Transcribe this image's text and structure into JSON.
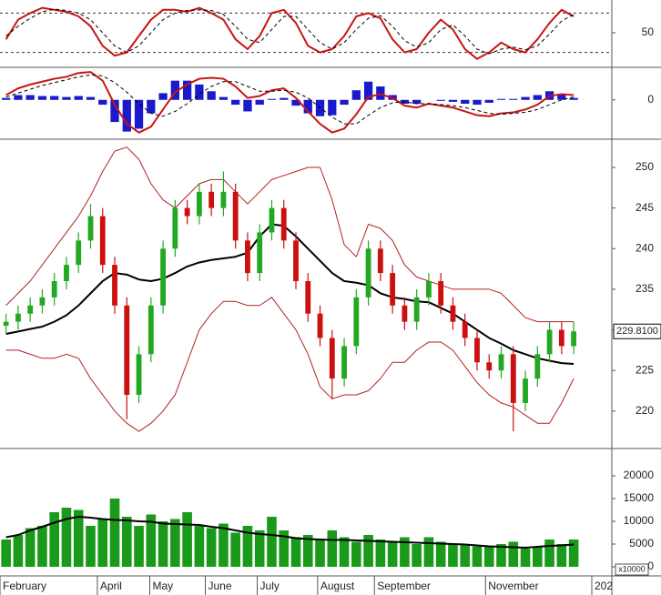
{
  "chart_data": [
    {
      "type": "line",
      "x": [
        0,
        1,
        2,
        3,
        4,
        5,
        6,
        7,
        8,
        9,
        10,
        11,
        12,
        13,
        14,
        15,
        16,
        17,
        18,
        19,
        20,
        21,
        22,
        23,
        24,
        25,
        26,
        27,
        28,
        29,
        30,
        31,
        32,
        33,
        34,
        35,
        36,
        37,
        38,
        39,
        40,
        41,
        42,
        43,
        44,
        45,
        46,
        47
      ],
      "xlim": [
        -0.5,
        48.5
      ],
      "ylim": [
        0,
        100
      ],
      "yticks": [
        50
      ],
      "hlines": [
        20,
        80
      ],
      "series": [
        {
          "color": "#c81414",
          "width": 2,
          "values": [
            40,
            70,
            80,
            88,
            85,
            82,
            75,
            60,
            30,
            15,
            20,
            45,
            70,
            85,
            85,
            82,
            88,
            80,
            70,
            40,
            25,
            45,
            80,
            85,
            65,
            30,
            20,
            25,
            45,
            75,
            80,
            72,
            40,
            20,
            25,
            50,
            70,
            55,
            25,
            10,
            20,
            35,
            25,
            20,
            40,
            65,
            85,
            75
          ]
        },
        {
          "color": "#000000",
          "width": 1,
          "dash": true,
          "values": [
            45,
            60,
            72,
            82,
            86,
            84,
            80,
            70,
            50,
            30,
            20,
            30,
            50,
            70,
            80,
            84,
            85,
            84,
            78,
            60,
            40,
            35,
            55,
            75,
            75,
            55,
            35,
            25,
            35,
            55,
            72,
            76,
            60,
            38,
            28,
            35,
            55,
            62,
            45,
            25,
            18,
            25,
            28,
            24,
            30,
            48,
            68,
            78
          ]
        }
      ]
    },
    {
      "type": "line",
      "x": [
        0,
        1,
        2,
        3,
        4,
        5,
        6,
        7,
        8,
        9,
        10,
        11,
        12,
        13,
        14,
        15,
        16,
        17,
        18,
        19,
        20,
        21,
        22,
        23,
        24,
        25,
        26,
        27,
        28,
        29,
        30,
        31,
        32,
        33,
        34,
        35,
        36,
        37,
        38,
        39,
        40,
        41,
        42,
        43,
        44,
        45,
        46,
        47
      ],
      "xlim": [
        -0.5,
        48.5
      ],
      "ylim": [
        -4,
        3.2
      ],
      "yticks": [
        0
      ],
      "histogram": {
        "color": "#1a1acc",
        "values": [
          0.2,
          0.5,
          0.5,
          0.4,
          0.4,
          0.3,
          0.4,
          0.3,
          -0.5,
          -2.3,
          -3.3,
          -3,
          -1.4,
          0.7,
          2,
          2,
          1.6,
          0.9,
          0.3,
          -0.5,
          -1.2,
          -0.5,
          0.1,
          0.2,
          -0.6,
          -1.4,
          -1.7,
          -1.6,
          -0.5,
          1,
          1.9,
          1.4,
          0.5,
          -0.4,
          -0.4,
          0,
          -0.1,
          -0.2,
          -0.4,
          -0.5,
          -0.3,
          0.1,
          0.1,
          0.3,
          0.5,
          0.9,
          0.6,
          0.2
        ]
      },
      "series": [
        {
          "color": "#c81414",
          "width": 2,
          "values": [
            0.5,
            1.2,
            1.6,
            1.9,
            2.2,
            2.4,
            2.8,
            2.9,
            2,
            -0.5,
            -2.5,
            -3.4,
            -2.8,
            -1,
            0.8,
            1.6,
            2.2,
            2.3,
            2.2,
            1.4,
            0.2,
            0.4,
            1,
            1.2,
            0.2,
            -1.2,
            -2.5,
            -3.4,
            -3,
            -1.5,
            0.3,
            0.6,
            0.2,
            -0.6,
            -0.8,
            -0.4,
            -0.6,
            -0.8,
            -1.2,
            -1.6,
            -1.7,
            -1.4,
            -1.3,
            -1,
            -0.5,
            0.4,
            0.6,
            0.5
          ]
        },
        {
          "color": "#000000",
          "width": 1,
          "dash": true,
          "values": [
            0.3,
            0.7,
            1.1,
            1.5,
            1.8,
            2.1,
            2.4,
            2.6,
            2.5,
            1.8,
            0.8,
            -0.4,
            -1.4,
            -1.7,
            -1.2,
            -0.4,
            0.6,
            1.4,
            1.9,
            1.9,
            1.4,
            0.9,
            0.9,
            1,
            0.8,
            0.2,
            -0.8,
            -1.8,
            -2.5,
            -2.5,
            -1.6,
            -0.8,
            -0.3,
            -0.2,
            -0.4,
            -0.4,
            -0.5,
            -0.6,
            -0.8,
            -1.1,
            -1.4,
            -1.5,
            -1.4,
            -1.3,
            -1,
            -0.5,
            0,
            0.3
          ]
        }
      ]
    },
    {
      "type": "candlestick",
      "x": [
        0,
        1,
        2,
        3,
        4,
        5,
        6,
        7,
        8,
        9,
        10,
        11,
        12,
        13,
        14,
        15,
        16,
        17,
        18,
        19,
        20,
        21,
        22,
        23,
        24,
        25,
        26,
        27,
        28,
        29,
        30,
        31,
        32,
        33,
        34,
        35,
        36,
        37,
        38,
        39,
        40,
        41,
        42,
        43,
        44,
        45,
        46,
        47
      ],
      "xlim": [
        -0.5,
        48.5
      ],
      "ylim": [
        215.5,
        253.25
      ],
      "yticks": [
        220,
        225,
        230,
        235,
        240,
        245,
        250
      ],
      "up_color": "#22a822",
      "down_color": "#cc1010",
      "open": [
        230.5,
        231,
        232,
        233,
        234,
        236,
        238,
        241,
        244,
        238,
        233,
        222,
        227,
        233,
        240,
        245,
        244,
        247,
        245,
        247,
        241,
        237,
        242,
        245,
        241,
        236,
        232,
        229,
        224,
        228,
        234,
        240,
        237,
        233,
        231,
        234,
        236,
        233,
        231,
        229,
        226,
        225,
        227,
        221,
        224,
        227,
        230,
        228
      ],
      "high": [
        232,
        233,
        234,
        235,
        237,
        239,
        242,
        245.5,
        245,
        239,
        234,
        228,
        234,
        241,
        246,
        246,
        248,
        248,
        249.5,
        248,
        242,
        243,
        246,
        246,
        242,
        237,
        233,
        230,
        229,
        235,
        241,
        241,
        238,
        234,
        235,
        237,
        237,
        234,
        232,
        230,
        227,
        228,
        228,
        225,
        228,
        231,
        231,
        231
      ],
      "low": [
        229.5,
        230,
        231,
        232,
        233,
        235,
        237,
        240,
        237,
        232,
        219,
        221,
        226,
        232,
        239,
        243,
        243,
        244,
        244,
        240,
        236,
        236,
        241,
        240,
        235,
        231,
        228,
        221.5,
        223,
        227,
        233,
        236,
        232,
        230,
        230,
        233,
        232,
        230,
        228,
        225,
        224,
        224,
        217.5,
        220,
        223,
        226,
        227,
        227
      ],
      "close": [
        231,
        232,
        233,
        234,
        236,
        238,
        241,
        244,
        238,
        233,
        222,
        227,
        233,
        240,
        245,
        244,
        247,
        245,
        247,
        241,
        237,
        242,
        245,
        241,
        236,
        232,
        229,
        224,
        228,
        234,
        240,
        237,
        233,
        231,
        234,
        236,
        233,
        231,
        229,
        226,
        225,
        227,
        221,
        224,
        227,
        230,
        228,
        229.81
      ],
      "last_label": {
        "value": 229.81,
        "label": "229.8100"
      },
      "series": [
        {
          "color": "#b22222",
          "width": 1,
          "values": [
            233,
            234.5,
            236,
            238,
            240,
            242,
            244,
            246.5,
            249.5,
            252,
            252.5,
            251,
            248,
            246,
            245,
            246.5,
            248,
            248.5,
            248.5,
            247,
            245.5,
            247,
            248.5,
            249,
            249.5,
            250,
            250,
            246,
            240.5,
            239,
            243,
            242.5,
            241,
            238,
            236.5,
            236,
            235.5,
            235,
            235,
            235,
            235,
            234.5,
            233,
            231.5,
            231,
            231,
            231,
            231
          ]
        },
        {
          "color": "#b22222",
          "width": 1,
          "values": [
            227.5,
            227.5,
            227,
            226.5,
            226.5,
            227,
            226.5,
            224,
            222,
            220,
            218.5,
            217.5,
            218.5,
            220,
            222,
            226,
            230,
            232,
            233.5,
            233.5,
            233,
            233,
            234,
            232,
            230,
            227,
            223,
            221.5,
            222,
            222,
            222.5,
            224,
            226,
            226,
            227.5,
            228.5,
            228.5,
            227.5,
            225.5,
            223.5,
            222,
            221,
            220.5,
            219.5,
            218.5,
            218.5,
            221,
            224
          ]
        },
        {
          "color": "#000000",
          "width": 2,
          "values": [
            229.5,
            229.8,
            230.1,
            230.4,
            231,
            231.8,
            233,
            234.5,
            236,
            237,
            236.8,
            236.2,
            236,
            236.3,
            237,
            237.8,
            238.3,
            238.6,
            238.8,
            239,
            239.5,
            241.5,
            243,
            242.8,
            241.5,
            240,
            238.5,
            237,
            236,
            235.8,
            235.5,
            234.5,
            234,
            233.8,
            233.5,
            233.4,
            232.7,
            232,
            231,
            230,
            229,
            228.3,
            227.5,
            227,
            226.5,
            226.2,
            225.9,
            225.8
          ]
        }
      ]
    },
    {
      "type": "bar",
      "x": [
        0,
        1,
        2,
        3,
        4,
        5,
        6,
        7,
        8,
        9,
        10,
        11,
        12,
        13,
        14,
        15,
        16,
        17,
        18,
        19,
        20,
        21,
        22,
        23,
        24,
        25,
        26,
        27,
        28,
        29,
        30,
        31,
        32,
        33,
        34,
        35,
        36,
        37,
        38,
        39,
        40,
        41,
        42,
        43,
        44,
        45,
        46,
        47
      ],
      "xlim": [
        -0.5,
        48.5
      ],
      "ylim": [
        -1800,
        25800
      ],
      "yticks": [
        0,
        5000,
        10000,
        15000,
        20000
      ],
      "unit_label": "x10000",
      "color": "#1a9a1a",
      "values": [
        6000,
        7000,
        8500,
        9000,
        12000,
        13000,
        12500,
        9000,
        10500,
        15000,
        11000,
        9000,
        11500,
        10000,
        10500,
        12000,
        9000,
        8500,
        9500,
        7500,
        9000,
        8000,
        11000,
        8000,
        6500,
        7000,
        6000,
        8000,
        6500,
        5500,
        7000,
        6000,
        5500,
        6500,
        5000,
        6500,
        5500,
        5000,
        5000,
        4500,
        4500,
        5000,
        5500,
        4000,
        4500,
        6000,
        5000,
        6000
      ],
      "series": [
        {
          "color": "#000000",
          "width": 2,
          "values": [
            6500,
            7000,
            8000,
            8800,
            9700,
            10500,
            11000,
            10800,
            10500,
            10300,
            10200,
            10000,
            9900,
            9500,
            9400,
            9300,
            9200,
            8800,
            8500,
            8000,
            7500,
            7200,
            7000,
            6700,
            6300,
            6100,
            6000,
            5900,
            5900,
            5800,
            5700,
            5600,
            5500,
            5400,
            5300,
            5200,
            5100,
            5000,
            4900,
            4700,
            4500,
            4400,
            4300,
            4200,
            4400,
            4600,
            4700,
            4900
          ]
        }
      ],
      "xticks": [
        {
          "value": -0.5,
          "label": "February"
        },
        {
          "value": 7.56,
          "label": "April"
        },
        {
          "value": 11.9,
          "label": "May"
        },
        {
          "value": 16.5,
          "label": "June"
        },
        {
          "value": 20.8,
          "label": "July"
        },
        {
          "value": 25.8,
          "label": "August"
        },
        {
          "value": 30.5,
          "label": "September"
        },
        {
          "value": 39.7,
          "label": "November"
        },
        {
          "value": 48.5,
          "label": "202"
        }
      ]
    }
  ]
}
